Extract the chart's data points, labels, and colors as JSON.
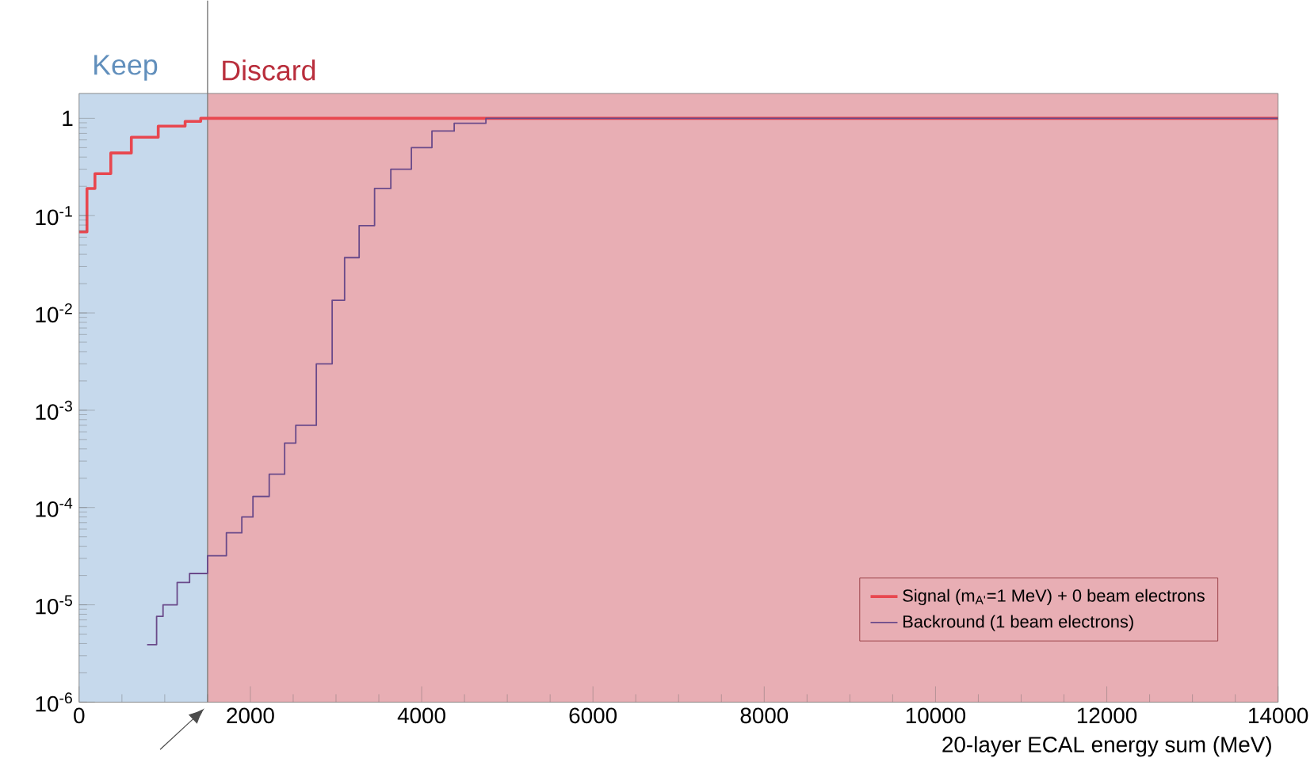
{
  "chart_data": {
    "type": "step",
    "xlabel": "20-layer ECAL energy sum (MeV)",
    "log": "y",
    "legend": "bottom right",
    "marker": "none",
    "xlim": [
      0,
      14000
    ],
    "ylim": [
      1e-06,
      1.8
    ],
    "xticks": [
      0,
      2000,
      4000,
      6000,
      8000,
      10000,
      12000,
      14000
    ],
    "yticks": [
      {
        "value": 1e-06,
        "label": "10$^{-6}$"
      },
      {
        "value": 1e-05,
        "label": "10$^{-5}$"
      },
      {
        "value": 0.0001,
        "label": "10$^{-4}$"
      },
      {
        "value": 0.001,
        "label": "10$^{-3}$"
      },
      {
        "value": 0.01,
        "label": "10$^{-2}$"
      },
      {
        "value": 0.1,
        "label": "10$^{-1}$"
      },
      1
    ],
    "bands": [
      {
        "axis": "x",
        "from": 0,
        "to": 1500,
        "label": "Keep",
        "color": "#c6d9ec"
      },
      {
        "axis": "x",
        "from": 1500,
        "to": 14000,
        "label": "Discard",
        "color": "#e8aeb4"
      }
    ],
    "ref_lines": [
      {
        "axis": "x",
        "value": 1500,
        "color": "#8a8a8a"
      }
    ],
    "series": [
      {
        "name": "Signal (m$_{A'}$=1 MeV) + 0 beam electrons",
        "color": "#e8474f",
        "x": [
          0,
          92,
          185,
          370,
          610,
          924,
          1238,
          1420,
          14000
        ],
        "values": [
          0.068,
          0.19,
          0.27,
          0.44,
          0.64,
          0.83,
          0.93,
          1,
          1
        ]
      },
      {
        "name": "Backround (1 beam electrons)",
        "color": "#6a4a8a",
        "x": [
          794,
          905,
          980,
          1145,
          1290,
          1500,
          1720,
          1900,
          2030,
          2220,
          2400,
          2530,
          2770,
          2955,
          3100,
          3270,
          3450,
          3640,
          3880,
          4120,
          4380,
          4750,
          14000
        ],
        "values": [
          3.9e-06,
          7.6e-06,
          1e-05,
          1.7e-05,
          2.1e-05,
          3.2e-05,
          5.5e-05,
          8e-05,
          0.00013,
          0.00022,
          0.00046,
          0.0007,
          0.003,
          0.0135,
          0.037,
          0.079,
          0.19,
          0.3,
          0.5,
          0.74,
          0.89,
          1,
          1
        ]
      }
    ]
  }
}
